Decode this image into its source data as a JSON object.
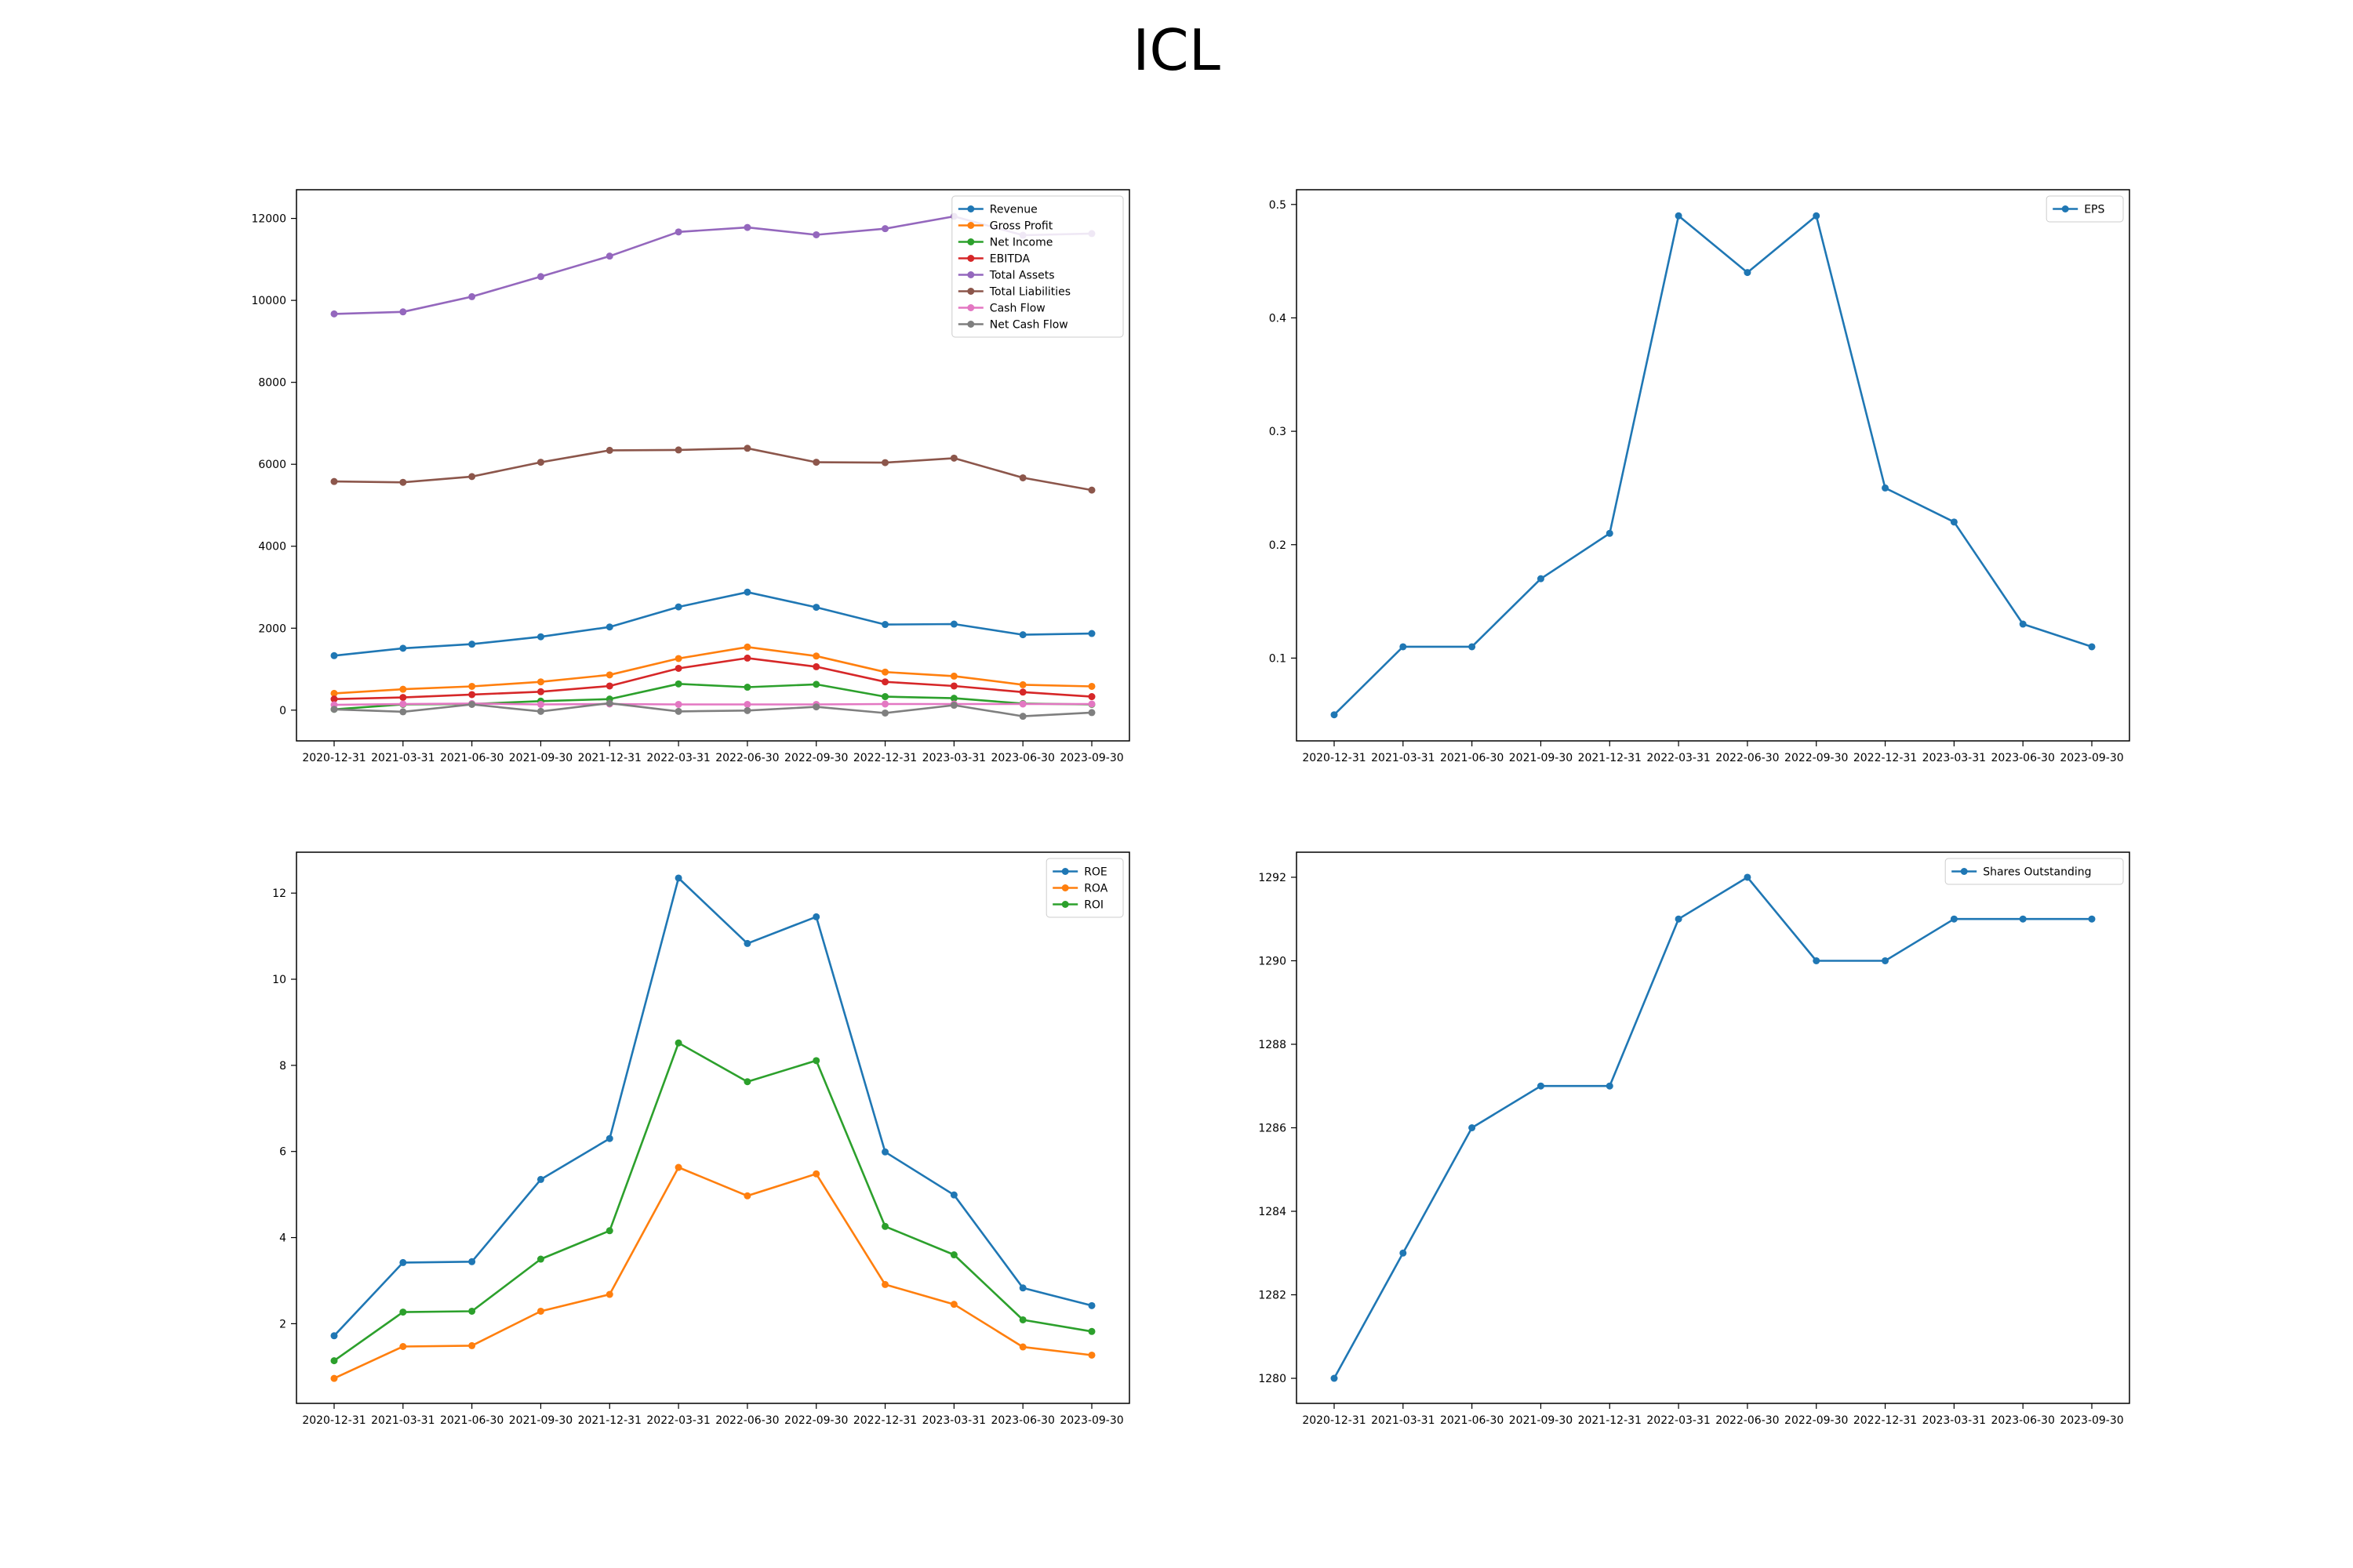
{
  "figure": {
    "title": "ICL"
  },
  "x_labels": [
    "2020-12-31",
    "2021-03-31",
    "2021-06-30",
    "2021-09-30",
    "2021-12-31",
    "2022-03-31",
    "2022-06-30",
    "2022-09-30",
    "2022-12-31",
    "2023-03-31",
    "2023-06-30",
    "2023-09-30"
  ],
  "colors": {
    "blue": "#1f77b4",
    "orange": "#ff7f0e",
    "green": "#2ca02c",
    "red": "#d62728",
    "purple": "#9467bd",
    "brown": "#8c564b",
    "pink": "#e377c2",
    "gray": "#7f7f7f"
  },
  "chart_data": [
    {
      "id": "financials",
      "type": "line",
      "ylim": [
        -750,
        12700
      ],
      "yticks": [
        0,
        2000,
        4000,
        6000,
        8000,
        10000,
        12000
      ],
      "legend_position": "top-right",
      "series": [
        {
          "name": "Revenue",
          "color": "#1f77b4",
          "values": [
            1330,
            1510,
            1610,
            1790,
            2030,
            2520,
            2880,
            2510,
            2090,
            2100,
            1840,
            1870
          ]
        },
        {
          "name": "Gross Profit",
          "color": "#ff7f0e",
          "values": [
            410,
            510,
            580,
            690,
            860,
            1260,
            1540,
            1320,
            930,
            830,
            620,
            580
          ]
        },
        {
          "name": "Net Income",
          "color": "#2ca02c",
          "values": [
            20,
            140,
            150,
            220,
            270,
            640,
            560,
            630,
            330,
            290,
            160,
            140
          ]
        },
        {
          "name": "EBITDA",
          "color": "#d62728",
          "values": [
            270,
            310,
            380,
            450,
            590,
            1020,
            1270,
            1060,
            690,
            590,
            440,
            330
          ]
        },
        {
          "name": "Total Assets",
          "color": "#9467bd",
          "values": [
            9670,
            9720,
            10090,
            10580,
            11080,
            11670,
            11780,
            11600,
            11750,
            12050,
            11590,
            11630
          ]
        },
        {
          "name": "Total Liabilities",
          "color": "#8c564b",
          "values": [
            5580,
            5560,
            5700,
            6050,
            6340,
            6350,
            6390,
            6050,
            6040,
            6150,
            5670,
            5370
          ]
        },
        {
          "name": "Cash Flow",
          "color": "#e377c2",
          "values": [
            130,
            150,
            160,
            140,
            150,
            140,
            140,
            140,
            150,
            150,
            150,
            150
          ]
        },
        {
          "name": "Net Cash Flow",
          "color": "#7f7f7f",
          "values": [
            20,
            -40,
            140,
            -30,
            170,
            -30,
            -10,
            80,
            -70,
            120,
            -150,
            -60
          ]
        }
      ]
    },
    {
      "id": "eps",
      "type": "line",
      "ylim": [
        0.027,
        0.513
      ],
      "yticks": [
        0.1,
        0.2,
        0.3,
        0.4,
        0.5
      ],
      "legend_position": "top-right",
      "series": [
        {
          "name": "EPS",
          "color": "#1f77b4",
          "values": [
            0.05,
            0.11,
            0.11,
            0.17,
            0.21,
            0.49,
            0.44,
            0.49,
            0.25,
            0.22,
            0.13,
            0.11
          ]
        }
      ]
    },
    {
      "id": "ratios",
      "type": "line",
      "ylim": [
        0.15,
        12.95
      ],
      "yticks": [
        2,
        4,
        6,
        8,
        10,
        12
      ],
      "legend_position": "top-right",
      "series": [
        {
          "name": "ROE",
          "color": "#1f77b4",
          "values": [
            1.72,
            3.42,
            3.44,
            5.35,
            6.3,
            12.35,
            10.83,
            11.45,
            5.99,
            4.99,
            2.83,
            2.42
          ]
        },
        {
          "name": "ROA",
          "color": "#ff7f0e",
          "values": [
            0.73,
            1.47,
            1.49,
            2.29,
            2.68,
            5.63,
            4.97,
            5.48,
            2.91,
            2.45,
            1.46,
            1.27
          ]
        },
        {
          "name": "ROI",
          "color": "#2ca02c",
          "values": [
            1.14,
            2.27,
            2.29,
            3.5,
            4.16,
            8.52,
            7.62,
            8.11,
            4.26,
            3.6,
            2.09,
            1.82
          ]
        }
      ]
    },
    {
      "id": "shares",
      "type": "line",
      "ylim": [
        1279.4,
        1292.6
      ],
      "yticks": [
        1280,
        1282,
        1284,
        1286,
        1288,
        1290,
        1292
      ],
      "legend_position": "top-right",
      "series": [
        {
          "name": "Shares Outstanding",
          "color": "#1f77b4",
          "values": [
            1280,
            1283,
            1286,
            1287,
            1287,
            1291,
            1292,
            1290,
            1290,
            1291,
            1291,
            1291
          ]
        }
      ]
    }
  ]
}
